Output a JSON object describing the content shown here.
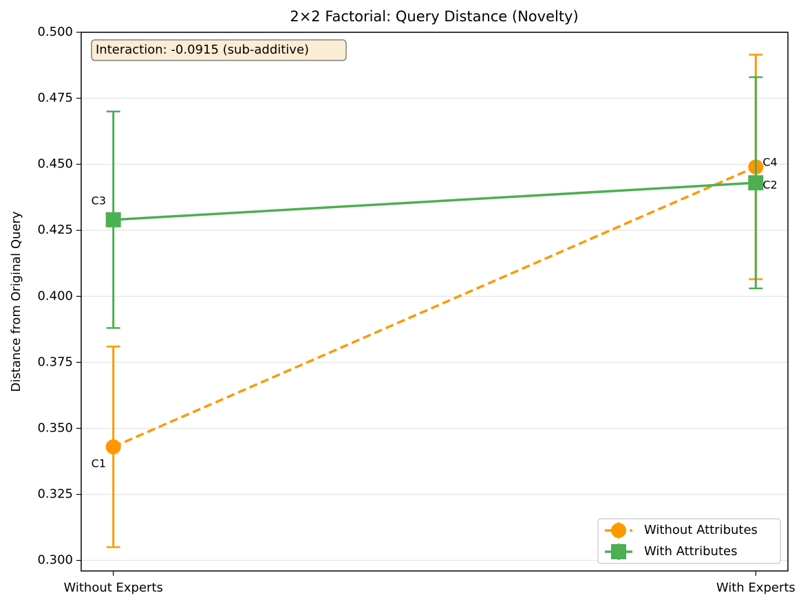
{
  "chart_data": {
    "type": "line",
    "title": "2×2 Factorial: Query Distance (Novelty)",
    "ylabel": "Distance from Original Query",
    "categories": [
      "Without Experts",
      "With Experts"
    ],
    "series": [
      {
        "name": "Without Attributes",
        "color": "#ff9800",
        "linestyle": "dashed",
        "marker": "circle",
        "values": [
          0.343,
          0.449
        ],
        "errors": [
          0.038,
          0.0425
        ],
        "point_labels": [
          "C1",
          "C4"
        ]
      },
      {
        "name": "With Attributes",
        "color": "#4caf50",
        "linestyle": "solid",
        "marker": "square",
        "values": [
          0.429,
          0.443
        ],
        "errors": [
          0.041,
          0.04
        ],
        "point_labels": [
          "C3",
          "C2"
        ]
      }
    ],
    "annotation": "Interaction: -0.0915 (sub-additive)",
    "ylim": [
      0.296,
      0.5
    ],
    "yticks": [
      {
        "value": 0.3,
        "label": "0.300"
      },
      0.325,
      {
        "value": 0.35,
        "label": "0.350"
      },
      0.375,
      {
        "value": 0.4,
        "label": "0.400"
      },
      0.425,
      {
        "value": 0.45,
        "label": "0.450"
      },
      0.475,
      {
        "value": 0.5,
        "label": "0.500"
      }
    ],
    "grid": true,
    "legend": "lower right"
  }
}
